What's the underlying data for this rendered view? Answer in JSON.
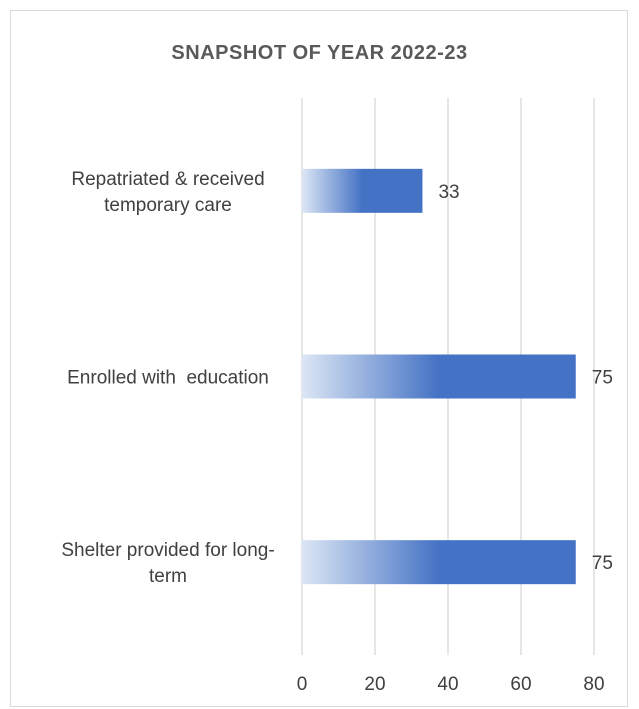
{
  "chart_data": {
    "type": "bar",
    "orientation": "horizontal",
    "title": "SNAPSHOT OF YEAR 2022-23",
    "categories": [
      [
        "Repatriated & received",
        "temporary care"
      ],
      [
        "Enrolled with  education"
      ],
      [
        "Shelter provided for long-",
        "term"
      ]
    ],
    "values": [
      33,
      75,
      75
    ],
    "xlim": [
      0,
      80
    ],
    "xticks": [
      0,
      20,
      40,
      60,
      80
    ],
    "grid": "vertical",
    "legend": "none",
    "colors": {
      "bar_solid": "#4472c4",
      "bar_fade": "#dce6f5",
      "grid": "#d9d9d9",
      "text": "#404040",
      "title": "#595959"
    }
  }
}
